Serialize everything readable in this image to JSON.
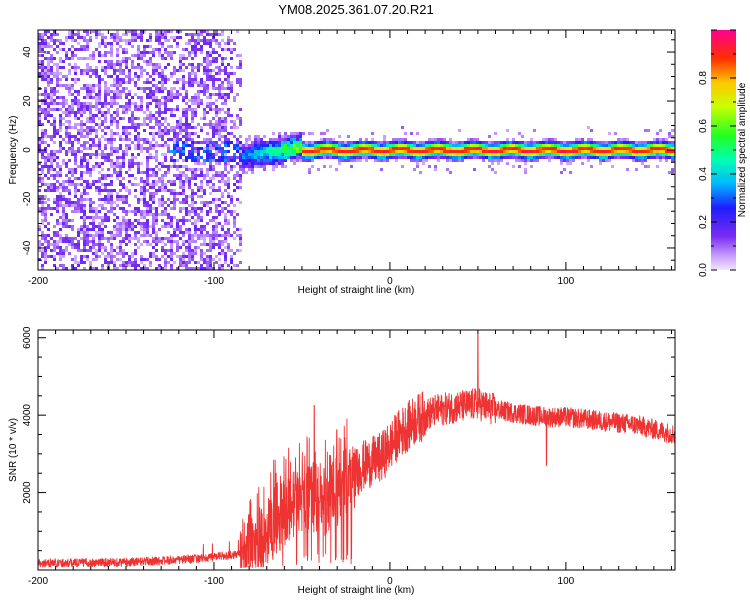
{
  "title": "YM08.2025.361.07.20.R21",
  "chart_data": [
    {
      "type": "heatmap",
      "name": "spectrogram",
      "xlabel": "Height of straight line (km)",
      "ylabel": "Frequency (Hz)",
      "xlim": [
        -200,
        162
      ],
      "ylim": [
        -49,
        49
      ],
      "xticks": [
        "-200",
        "-100",
        "0",
        "100"
      ],
      "yticks": [
        "-40",
        "-20",
        "0",
        "20",
        "40"
      ],
      "colorbar_label": "Normalized spectral amplitude",
      "colorbar_range": [
        0,
        1
      ],
      "colorbar_ticks": [
        "0.0",
        "0.2",
        "0.4",
        "0.6",
        "0.8"
      ],
      "description_points": [
        {
          "x": -200,
          "noise_floor": 0.2
        },
        {
          "x": -85,
          "noise_floor": 0.1
        },
        {
          "x": -60,
          "peak_amplitude": 0.45,
          "center_freq": 2
        },
        {
          "x": -45,
          "peak_amplitude": 0.95,
          "center_freq": 0
        },
        {
          "x": 160,
          "peak_amplitude": 0.95,
          "center_freq": 0
        }
      ]
    },
    {
      "type": "line",
      "name": "snr",
      "xlabel": "Height of straight line (km)",
      "ylabel": "SNR (10 * v/v)",
      "xlim": [
        -200,
        162
      ],
      "ylim": [
        0,
        6200
      ],
      "xticks": [
        "-200",
        "-100",
        "0",
        "100"
      ],
      "yticks": [
        "2000",
        "4000",
        "6000"
      ],
      "color": "#ee3333",
      "series": [
        {
          "name": "SNR",
          "x": [
            -200,
            -150,
            -120,
            -100,
            -85,
            -75,
            -65,
            -55,
            -45,
            -35,
            -25,
            -15,
            -5,
            5,
            15,
            25,
            35,
            45,
            50,
            55,
            65,
            80,
            90,
            100,
            120,
            140,
            162
          ],
          "values": [
            180,
            200,
            260,
            330,
            420,
            700,
            1300,
            1700,
            1900,
            1750,
            2300,
            2700,
            2900,
            3500,
            3900,
            4100,
            4200,
            4250,
            4300,
            4200,
            4100,
            4000,
            3950,
            3950,
            3850,
            3750,
            3500
          ]
        }
      ],
      "spikes": [
        {
          "x": -43,
          "value": 4250
        },
        {
          "x": 50,
          "value": 6100
        },
        {
          "x": 89,
          "value": 2700
        }
      ]
    }
  ]
}
